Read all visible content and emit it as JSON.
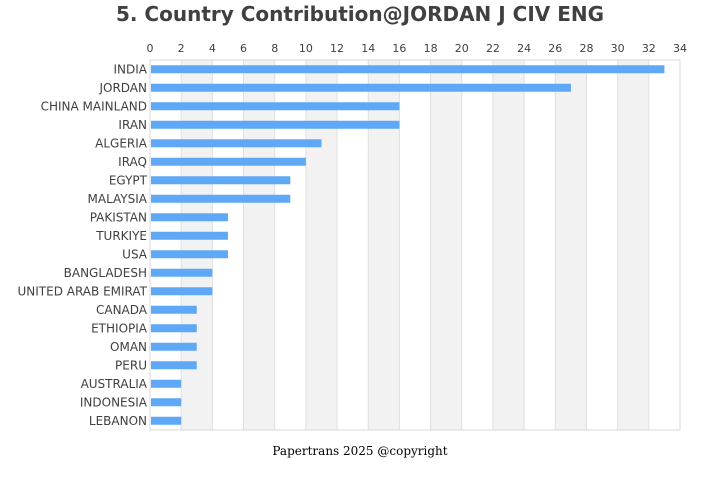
{
  "chart_data": {
    "type": "bar",
    "orientation": "horizontal",
    "title": "5. Country Contribution@JORDAN J CIV ENG",
    "categories": [
      "INDIA",
      "JORDAN",
      "CHINA MAINLAND",
      "IRAN",
      "ALGERIA",
      "IRAQ",
      "EGYPT",
      "MALAYSIA",
      "PAKISTAN",
      "TURKIYE",
      "USA",
      "BANGLADESH",
      "UNITED ARAB EMIRAT",
      "CANADA",
      "ETHIOPIA",
      "OMAN",
      "PERU",
      "AUSTRALIA",
      "INDONESIA",
      "LEBANON"
    ],
    "values": [
      33,
      27,
      16,
      16,
      11,
      10,
      9,
      9,
      5,
      5,
      5,
      4,
      4,
      3,
      3,
      3,
      3,
      2,
      2,
      2
    ],
    "xlim": [
      0,
      34
    ],
    "xticks": [
      "0",
      "2",
      "4",
      "6",
      "8",
      "10",
      "12",
      "14",
      "16",
      "18",
      "20",
      "22",
      "24",
      "26",
      "28",
      "30",
      "32",
      "34"
    ],
    "x_axis_position": "top",
    "grid": true,
    "bar_color": "#5fa8f5",
    "band_color": "#f2f2f2"
  },
  "footer": "Papertrans 2025 @copyright"
}
